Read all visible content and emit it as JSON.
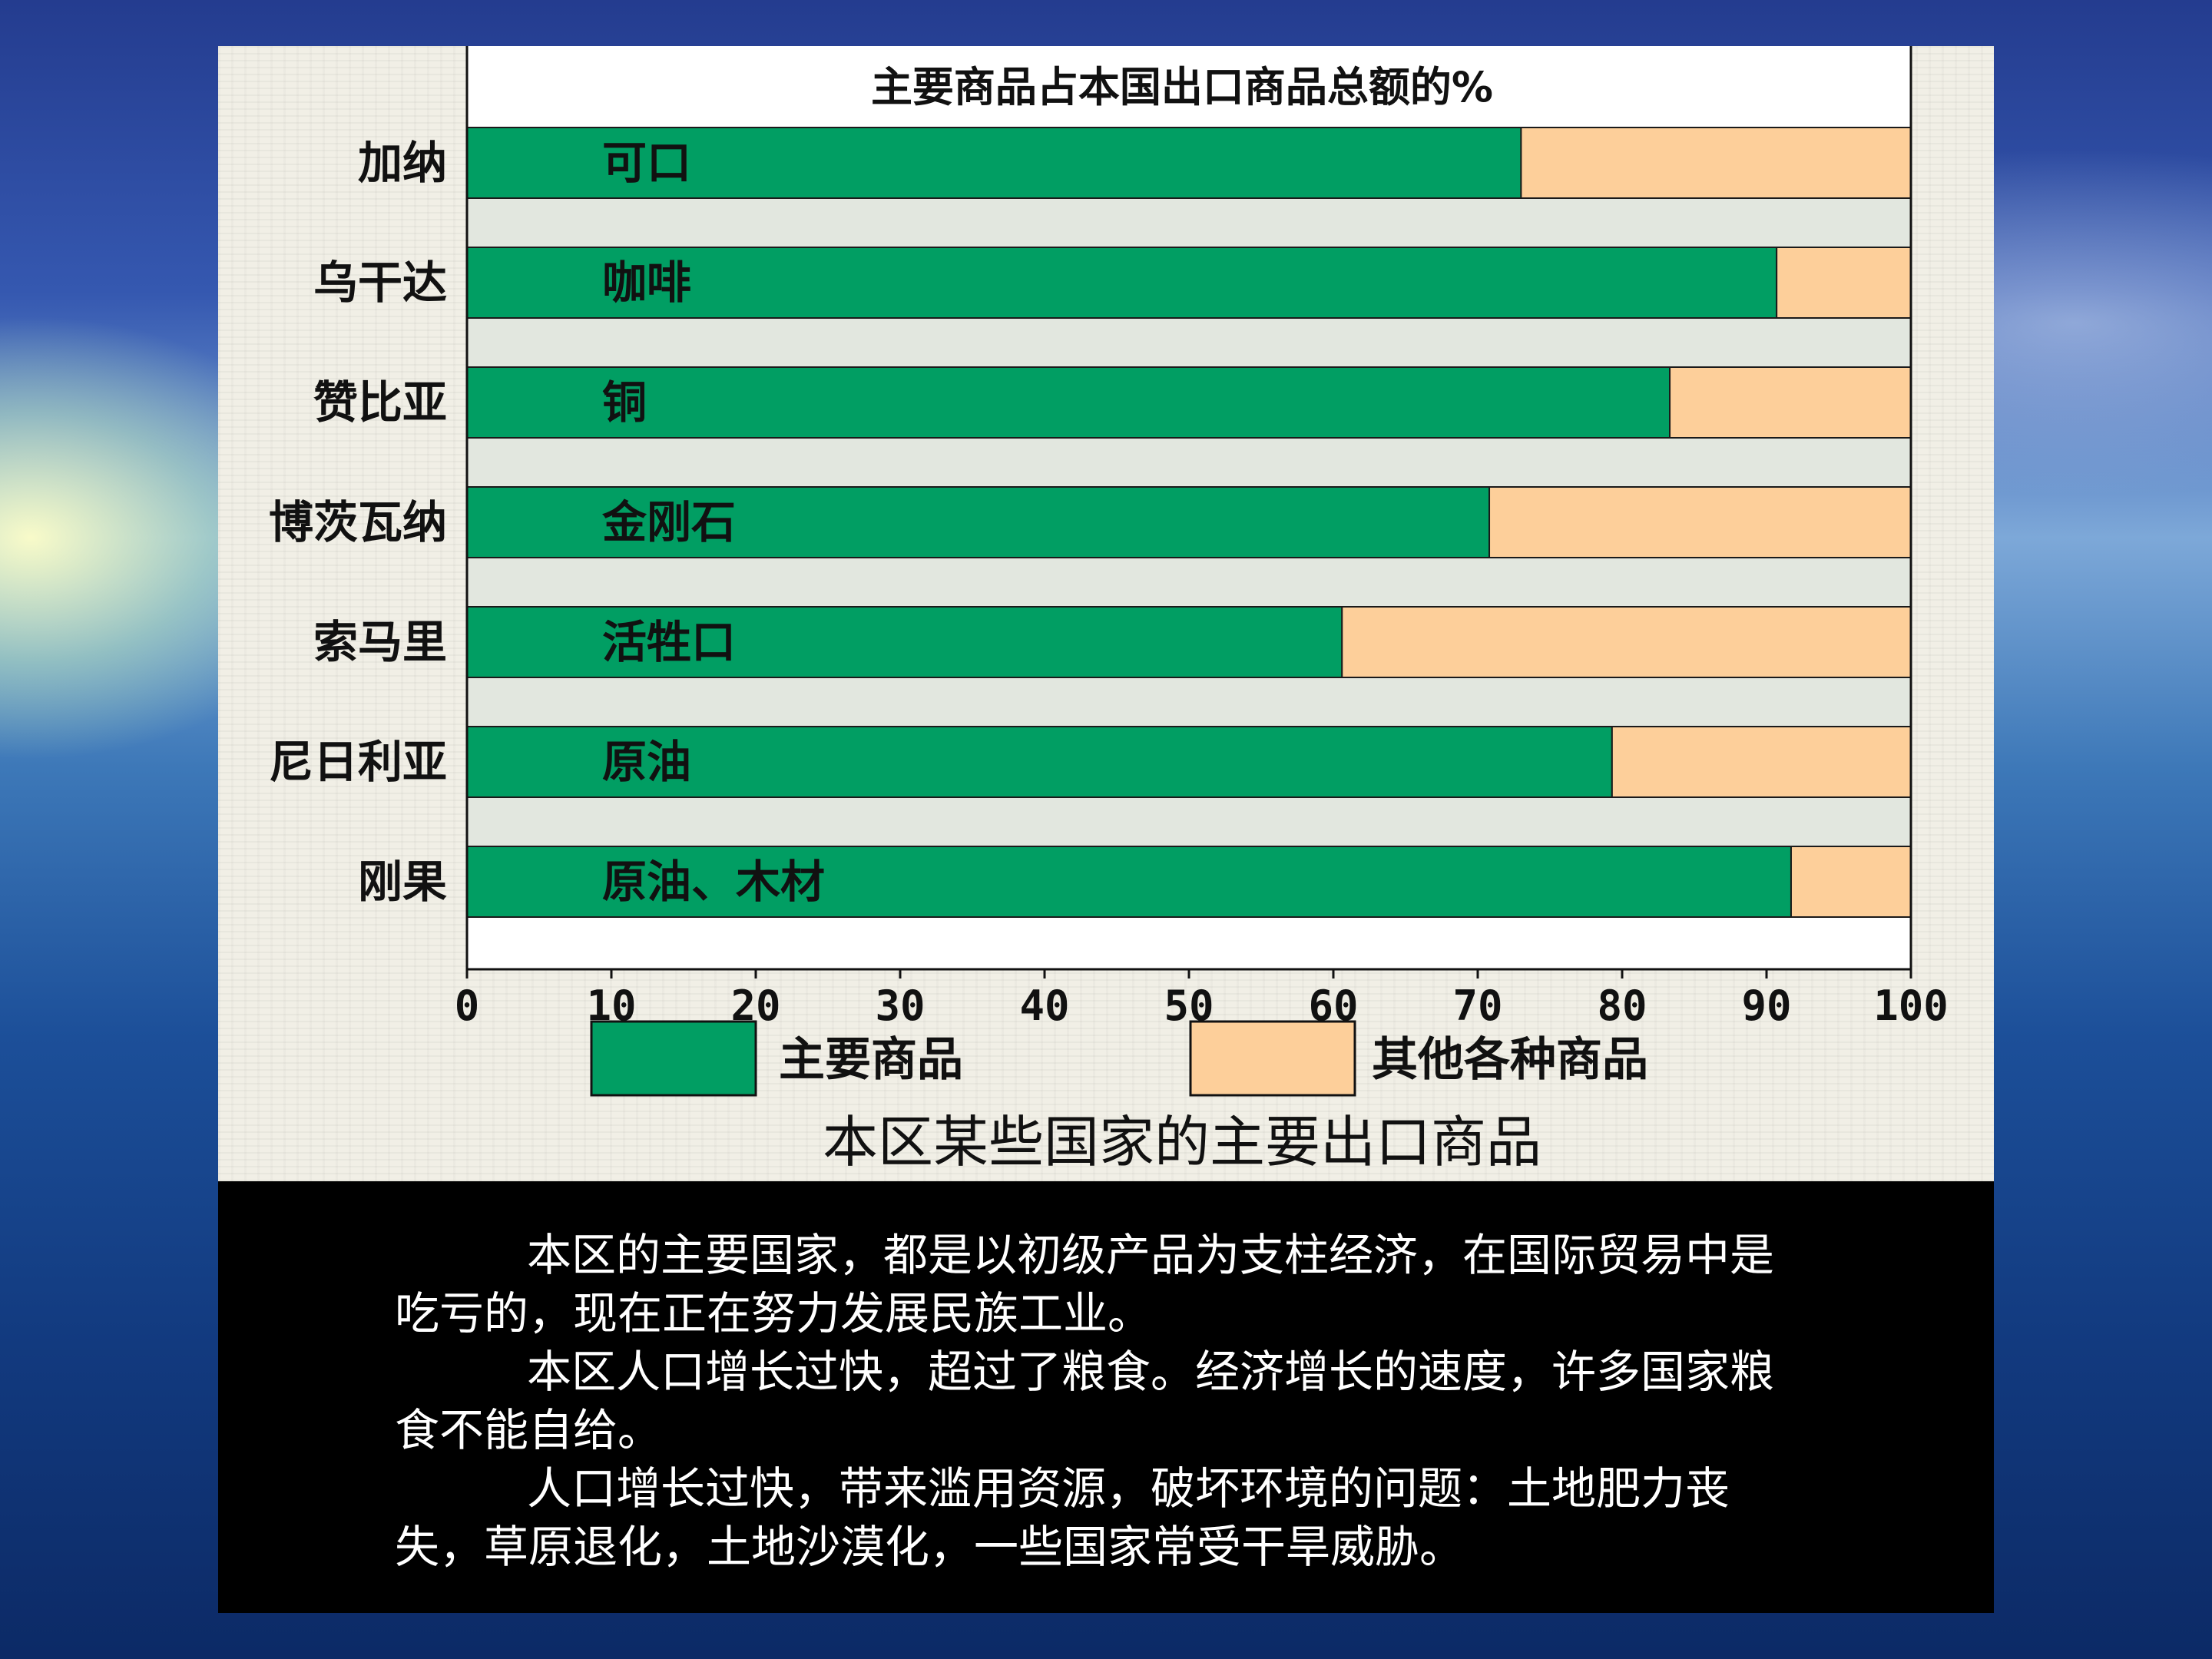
{
  "chart_data": {
    "type": "bar",
    "orientation": "horizontal",
    "stacked": true,
    "title": "主要商品占本国出口商品总额的%",
    "caption": "本区某些国家的主要出口商品",
    "categories": [
      "加纳",
      "乌干达",
      "赞比亚",
      "博茨瓦纳",
      "索马里",
      "尼日利亚",
      "刚果"
    ],
    "products": [
      "可口",
      "咖啡",
      "铜",
      "金刚石",
      "活牲口",
      "原油",
      "原油、木材"
    ],
    "series": [
      {
        "name": "主要商品",
        "color": "#019e63",
        "values": [
          73,
          90.7,
          83.3,
          70.8,
          60.6,
          79.3,
          91.7
        ]
      },
      {
        "name": "其他各种商品",
        "color": "#fdcf9a",
        "values": [
          27,
          9.3,
          16.7,
          29.2,
          39.4,
          20.7,
          8.3
        ]
      }
    ],
    "x_ticks": [
      "0",
      "10",
      "20",
      "30",
      "40",
      "50",
      "60",
      "70",
      "80",
      "90",
      "100"
    ],
    "xlim": [
      0,
      100
    ],
    "legend_position": "bottom"
  },
  "text": {
    "p1": "本区的主要国家，都是以初级产品为支柱经济，在国际贸易中是吃亏的，现在正在努力发展民族工业。",
    "p2": "本区人口增长过快，超过了粮食。经济增长的速度，许多国家粮食不能自给。",
    "p3": "人口增长过快，带来滥用资源，破坏环境的问题：土地肥力丧失，草原退化，土地沙漠化，一些国家常受干旱威胁。"
  }
}
